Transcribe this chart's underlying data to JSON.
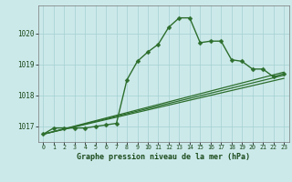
{
  "bg_color": "#cce9ea",
  "grid_color": "#aad4d5",
  "line_color": "#2d6e2d",
  "title": "Graphe pression niveau de la mer (hPa)",
  "xlim": [
    -0.5,
    23.5
  ],
  "ylim": [
    1016.5,
    1020.9
  ],
  "yticks": [
    1017,
    1018,
    1019,
    1020
  ],
  "xticks": [
    0,
    1,
    2,
    3,
    4,
    5,
    6,
    7,
    8,
    9,
    10,
    11,
    12,
    13,
    14,
    15,
    16,
    17,
    18,
    19,
    20,
    21,
    22,
    23
  ],
  "line1_x": [
    0,
    1,
    2,
    3,
    4,
    5,
    6,
    7,
    8,
    9,
    10,
    11,
    12,
    13,
    14,
    15,
    16,
    17,
    18,
    19,
    20,
    21,
    22,
    23
  ],
  "line1_y": [
    1016.75,
    1016.95,
    1016.95,
    1016.95,
    1016.95,
    1017.0,
    1017.05,
    1017.1,
    1018.5,
    1019.1,
    1019.4,
    1019.65,
    1020.2,
    1020.5,
    1020.5,
    1019.7,
    1019.75,
    1019.75,
    1019.15,
    1019.1,
    1018.85,
    1018.85,
    1018.6,
    1018.7
  ],
  "line2_x": [
    0,
    23
  ],
  "line2_y": [
    1016.75,
    1018.75
  ],
  "line3_x": [
    0,
    23
  ],
  "line3_y": [
    1016.75,
    1018.65
  ],
  "line4_x": [
    0,
    23
  ],
  "line4_y": [
    1016.75,
    1018.55
  ]
}
